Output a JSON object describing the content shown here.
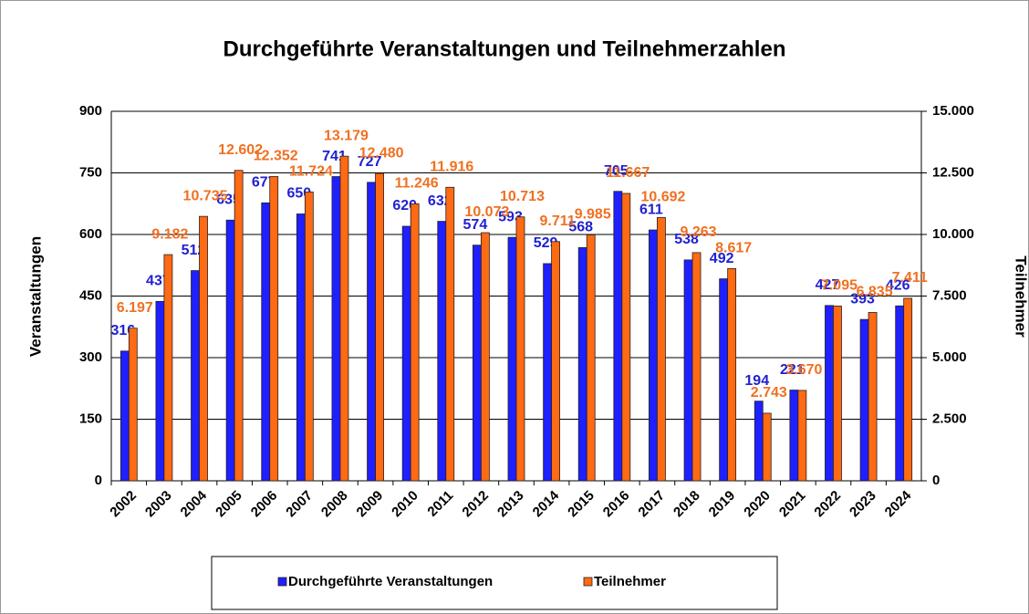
{
  "chart_data": {
    "type": "bar",
    "title": "Durchgeführte Veranstaltungen und Teilnehmerzahlen",
    "y_label": "Veranstaltungen",
    "y2_label": "Teilnehmer",
    "categories": [
      "2002",
      "2003",
      "2004",
      "2005",
      "2006",
      "2007",
      "2008",
      "2009",
      "2010",
      "2011",
      "2012",
      "2013",
      "2014",
      "2015",
      "2016",
      "2017",
      "2018",
      "2019",
      "2020",
      "2021",
      "2022",
      "2023",
      "2024"
    ],
    "series": [
      {
        "name": "Durchgeführte Veranstaltungen",
        "color": "#1f1fff",
        "label_color": "#2020d0",
        "values": [
          316,
          437,
          512,
          635,
          677,
          650,
          741,
          727,
          620,
          632,
          574,
          593,
          529,
          568,
          705,
          611,
          538,
          492,
          194,
          221,
          427,
          393,
          426
        ]
      },
      {
        "name": "Teilnehmer",
        "color": "#ff6a13",
        "label_color": "#f07020",
        "axis": "y2",
        "values": [
          6197,
          9182,
          10735,
          12602,
          12352,
          11724,
          13179,
          12480,
          11246,
          11916,
          10073,
          10713,
          9711,
          9985,
          11667,
          10692,
          9263,
          8617,
          2743,
          3670,
          7095,
          6835,
          7411
        ],
        "value_labels": [
          "6.197",
          "9.182",
          "10.735",
          "12.602",
          "12.352",
          "11.724",
          "13.179",
          "12.480",
          "11.246",
          "11.916",
          "10.073",
          "10.713",
          "9.711",
          "9.985",
          "11.667",
          "10.692",
          "9.263",
          "8.617",
          "2.743",
          "3.670",
          "7.095",
          "6.835",
          "7.411"
        ]
      }
    ],
    "ylim": [
      0,
      900
    ],
    "yticks": [
      0,
      150,
      300,
      450,
      600,
      750,
      900
    ],
    "y2lim": [
      0,
      15000
    ],
    "y2ticks": [
      0,
      {
        "value": 2500,
        "label": "2.500"
      },
      {
        "value": 5000,
        "label": "5.000"
      },
      {
        "value": 7500,
        "label": "7.500"
      },
      {
        "value": 10000,
        "label": "10.000"
      },
      {
        "value": 12500,
        "label": "12.500"
      },
      {
        "value": 15000,
        "label": "15.000"
      }
    ],
    "grid": true,
    "legend": "bottom"
  }
}
